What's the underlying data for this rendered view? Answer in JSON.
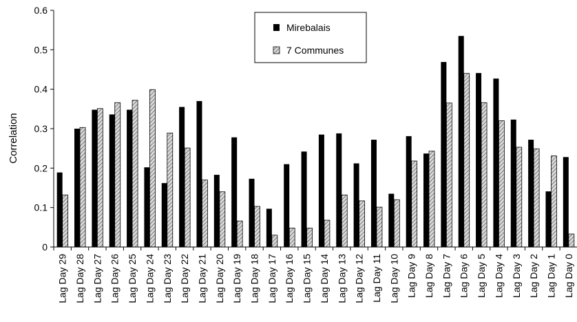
{
  "chart_data": {
    "type": "bar",
    "title": "",
    "xlabel": "",
    "ylabel": "Correlation",
    "ylim": [
      0,
      0.6
    ],
    "yticks": [
      "0",
      "0.1",
      "0.2",
      "0.3",
      "0.4",
      "0.5",
      "0.6"
    ],
    "grid": false,
    "legend_position": "top-center",
    "categories": [
      "Lag Day 29",
      "Lag Day 28",
      "Lag Day 27",
      "Lag Day 26",
      "Lag Day 25",
      "Lag Day 24",
      "Lag Day 23",
      "Lag Day 22",
      "Lag Day 21",
      "Lag Day 20",
      "Lag Day 19",
      "Lag Day 18",
      "Lag Day 17",
      "Lag Day 16",
      "Lag Day 15",
      "Lag Day 14",
      "Lag Day 13",
      "Lag Day 12",
      "Lag Day 11",
      "Lag Day 10",
      "Lag Day 9",
      "Lag Day 8",
      "Lag Day 7",
      "Lag Day 6",
      "Lag Day 5",
      "Lag Day 4",
      "Lag Day 3",
      "Lag Day 2",
      "Lag Day 1",
      "Lag Day 0"
    ],
    "series": [
      {
        "name": "Mirebalais",
        "color": "#000000",
        "pattern": "solid",
        "values": [
          0.189,
          0.3,
          0.348,
          0.336,
          0.348,
          0.202,
          0.162,
          0.355,
          0.37,
          0.183,
          0.278,
          0.173,
          0.097,
          0.21,
          0.242,
          0.285,
          0.288,
          0.212,
          0.272,
          0.135,
          0.281,
          0.237,
          0.469,
          0.535,
          0.441,
          0.427,
          0.323,
          0.272,
          0.141,
          0.228
        ]
      },
      {
        "name": "7 Communes",
        "color": "#bfbfbf",
        "pattern": "hatched",
        "values": [
          0.132,
          0.303,
          0.351,
          0.366,
          0.372,
          0.399,
          0.289,
          0.251,
          0.17,
          0.14,
          0.066,
          0.103,
          0.03,
          0.048,
          0.048,
          0.068,
          0.132,
          0.117,
          0.101,
          0.12,
          0.218,
          0.243,
          0.365,
          0.44,
          0.366,
          0.32,
          0.253,
          0.249,
          0.231,
          0.033
        ]
      }
    ]
  }
}
